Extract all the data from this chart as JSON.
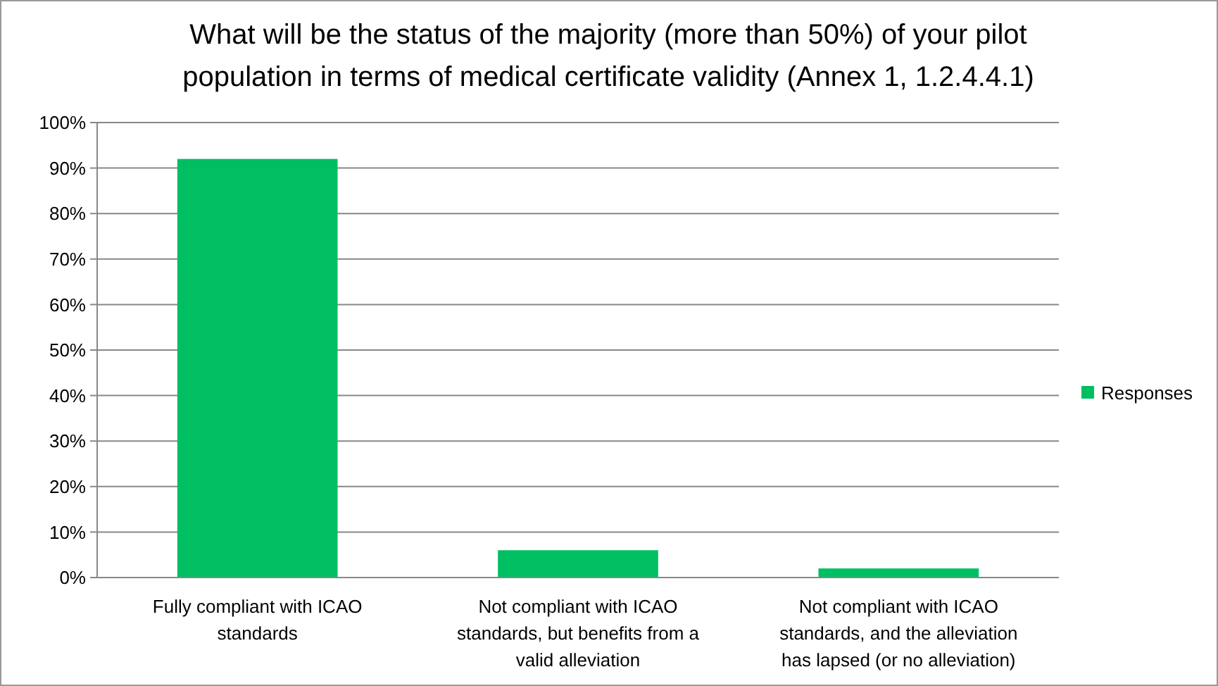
{
  "chart_data": {
    "type": "bar",
    "title": "What will be the status of the majority (more than 50%) of your pilot population in terms of medical certificate validity (Annex 1, 1.2.4.4.1)",
    "categories": [
      "Fully compliant with ICAO standards",
      "Not compliant with ICAO standards, but benefits from a valid alleviation",
      "Not compliant with ICAO standards, and the alleviation has lapsed (or no alleviation)"
    ],
    "series": [
      {
        "name": "Responses",
        "color": "#00bf63",
        "values": [
          92,
          6,
          2
        ]
      }
    ],
    "ylim": [
      0,
      100
    ],
    "yticks": [
      {
        "value": 0,
        "label": "0%"
      },
      {
        "value": 10,
        "label": "10%"
      },
      {
        "value": 20,
        "label": "20%"
      },
      {
        "value": 30,
        "label": "30%"
      },
      {
        "value": 40,
        "label": "40%"
      },
      {
        "value": 50,
        "label": "50%"
      },
      {
        "value": 60,
        "label": "60%"
      },
      {
        "value": 70,
        "label": "70%"
      },
      {
        "value": 80,
        "label": "80%"
      },
      {
        "value": 90,
        "label": "90%"
      },
      {
        "value": 100,
        "label": "100%"
      }
    ],
    "grid": "y",
    "legend": "right"
  }
}
